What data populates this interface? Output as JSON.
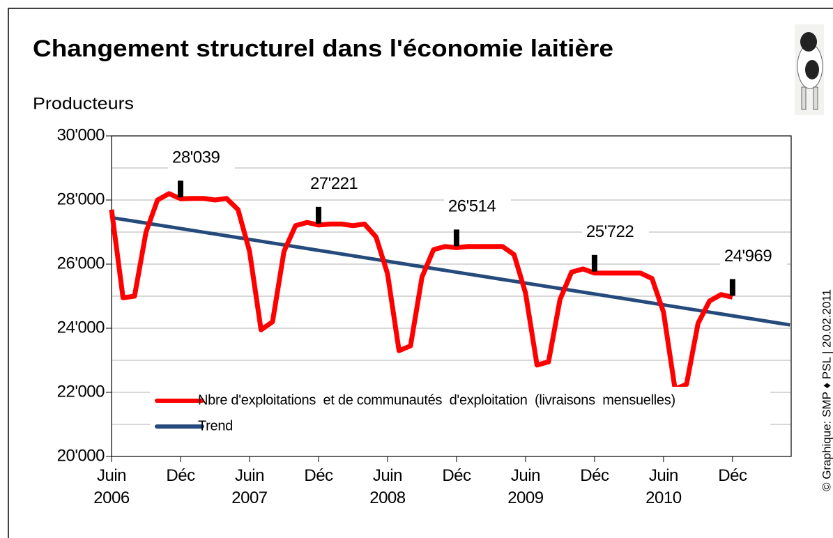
{
  "chart_data": {
    "type": "line",
    "title": "Changement structurel dans l'économie laitière",
    "y_label": "Producteurs",
    "credit": "© Graphique: SMP ♦ PSL | 20.02.2011",
    "categories": [
      "Juin\n2006",
      null,
      null,
      null,
      null,
      null,
      "Déc",
      null,
      null,
      null,
      null,
      null,
      "Juin\n2007",
      null,
      null,
      null,
      null,
      null,
      "Déc",
      null,
      null,
      null,
      null,
      null,
      "Juin\n2008",
      null,
      null,
      null,
      null,
      null,
      "Déc",
      null,
      null,
      null,
      null,
      null,
      "Juin\n2009",
      null,
      null,
      null,
      null,
      null,
      "Déc",
      null,
      null,
      null,
      null,
      null,
      "Juin\n2010",
      null,
      null,
      null,
      null,
      null,
      "Déc",
      null,
      null,
      null,
      null,
      null
    ],
    "series": [
      {
        "name": "Nbre d'exploitations  et de communautés  d'exploitation  (livraisons  mensuelles)",
        "color": "#ff0000",
        "values": [
          27700,
          24950,
          25000,
          27000,
          28000,
          28200,
          28039,
          28050,
          28050,
          28000,
          28050,
          27700,
          26400,
          23950,
          24200,
          26400,
          27200,
          27300,
          27221,
          27250,
          27250,
          27200,
          27250,
          26850,
          25700,
          23300,
          23450,
          25600,
          26450,
          26550,
          26514,
          26550,
          26550,
          26550,
          26550,
          26300,
          25100,
          22850,
          22950,
          24900,
          25750,
          25850,
          25722,
          25720,
          25720,
          25720,
          25720,
          25550,
          24500,
          22100,
          22250,
          24150,
          24850,
          25050,
          24969,
          null,
          null,
          null,
          null,
          null
        ],
        "value_labels": [
          null,
          null,
          null,
          null,
          null,
          null,
          "28'039",
          null,
          null,
          null,
          null,
          null,
          null,
          null,
          null,
          null,
          null,
          null,
          "27'221",
          null,
          null,
          null,
          null,
          null,
          null,
          null,
          null,
          null,
          null,
          null,
          "26'514",
          null,
          null,
          null,
          null,
          null,
          null,
          null,
          null,
          null,
          null,
          null,
          "25'722",
          null,
          null,
          null,
          null,
          null,
          null,
          null,
          null,
          null,
          null,
          null,
          "24'969",
          null,
          null,
          null,
          null,
          null
        ]
      },
      {
        "name": "Trend",
        "color": "#254a7c",
        "values": [
          27450,
          27393,
          27337,
          27280,
          27223,
          27167,
          27110,
          27053,
          26996,
          26940,
          26883,
          26826,
          26770,
          26713,
          26656,
          26600,
          26543,
          26486,
          26429,
          26373,
          26316,
          26259,
          26203,
          26146,
          26089,
          26033,
          25976,
          25919,
          25862,
          25806,
          25749,
          25692,
          25636,
          25579,
          25522,
          25466,
          25409,
          25352,
          25295,
          25239,
          25182,
          25125,
          25069,
          25012,
          24955,
          24899,
          24842,
          24785,
          24728,
          24672,
          24615,
          24558,
          24502,
          24445,
          24388,
          24332,
          24275,
          24218,
          24161,
          24105
        ]
      }
    ],
    "ylim": [
      20000,
      30000
    ],
    "yticks": [
      {
        "value": 20000,
        "label": "20'000"
      },
      {
        "value": 22000,
        "label": "22'000"
      },
      {
        "value": 24000,
        "label": "24'000"
      },
      {
        "value": 26000,
        "label": "26'000"
      },
      {
        "value": 28000,
        "label": "28'000"
      },
      {
        "value": 30000,
        "label": "30'000"
      }
    ],
    "minor_gridlines": [
      21000,
      23000,
      25000,
      27000,
      29000
    ],
    "grid": true,
    "legend": "lower left"
  }
}
